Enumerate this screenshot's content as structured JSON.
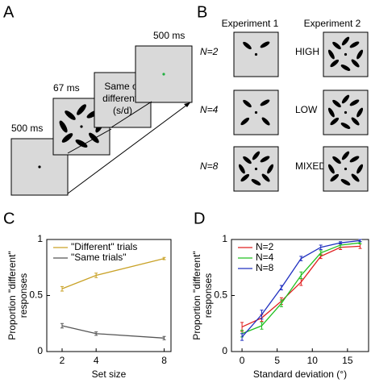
{
  "panel_labels": [
    "A",
    "B",
    "C",
    "D"
  ],
  "diagram_a": {
    "frames": [
      {
        "time": "500 ms"
      },
      {
        "time": "67 ms"
      },
      {
        "prompt": [
          "Same or",
          "different?",
          "(s/d)"
        ]
      },
      {
        "time": "500 ms"
      }
    ]
  },
  "diagram_b": {
    "columns": [
      "Experiment 1",
      "Experiment 2"
    ],
    "rows_1": [
      "N=2",
      "N=4",
      "N=8"
    ],
    "rows_2": [
      "HIGH",
      "LOW",
      "MIXED"
    ]
  },
  "chart_data": [
    {
      "type": "line",
      "xlabel": "Set size",
      "ylabel": [
        "Proportion \"different\"",
        "responses"
      ],
      "x": [
        2,
        4,
        8
      ],
      "xlim": [
        1.1,
        8.4
      ],
      "xticks": [
        2,
        4,
        8
      ],
      "ylim": [
        0,
        1
      ],
      "yticks": [
        0,
        0.5,
        1
      ],
      "legend": "upper-left",
      "series": [
        {
          "name": "\"Different\" trials",
          "color": "#c9a227",
          "values": [
            0.56,
            0.68,
            0.83
          ],
          "errors": [
            0.02,
            0.02,
            0.01
          ]
        },
        {
          "name": "\"Same trials\"",
          "color": "#555555",
          "values": [
            0.23,
            0.16,
            0.12
          ],
          "errors": [
            0.02,
            0.015,
            0.015
          ]
        }
      ]
    },
    {
      "type": "line",
      "xlabel": "Standard deviation (°)",
      "ylabel": [
        "Proportion \"different\"",
        "responses"
      ],
      "x": [
        0,
        2.8,
        5.6,
        8.4,
        11.2,
        14,
        16.8
      ],
      "xlim": [
        -1.5,
        18
      ],
      "xticks": [
        0,
        5,
        10,
        15
      ],
      "ylim": [
        0,
        1
      ],
      "yticks": [
        0,
        0.5,
        1
      ],
      "legend": "upper-left",
      "series": [
        {
          "name": "N=2",
          "color": "#e02020",
          "values": [
            0.22,
            0.3,
            0.45,
            0.62,
            0.85,
            0.93,
            0.94
          ],
          "errors": [
            0.04,
            0.03,
            0.03,
            0.03,
            0.02,
            0.02,
            0.02
          ]
        },
        {
          "name": "N=4",
          "color": "#20c020",
          "values": [
            0.16,
            0.23,
            0.43,
            0.68,
            0.88,
            0.95,
            0.97
          ],
          "errors": [
            0.03,
            0.03,
            0.03,
            0.03,
            0.02,
            0.02,
            0.01
          ]
        },
        {
          "name": "N=8",
          "color": "#2030c0",
          "values": [
            0.13,
            0.33,
            0.57,
            0.83,
            0.93,
            0.97,
            0.99
          ],
          "errors": [
            0.03,
            0.04,
            0.02,
            0.02,
            0.02,
            0.01,
            0.01
          ]
        }
      ]
    }
  ]
}
